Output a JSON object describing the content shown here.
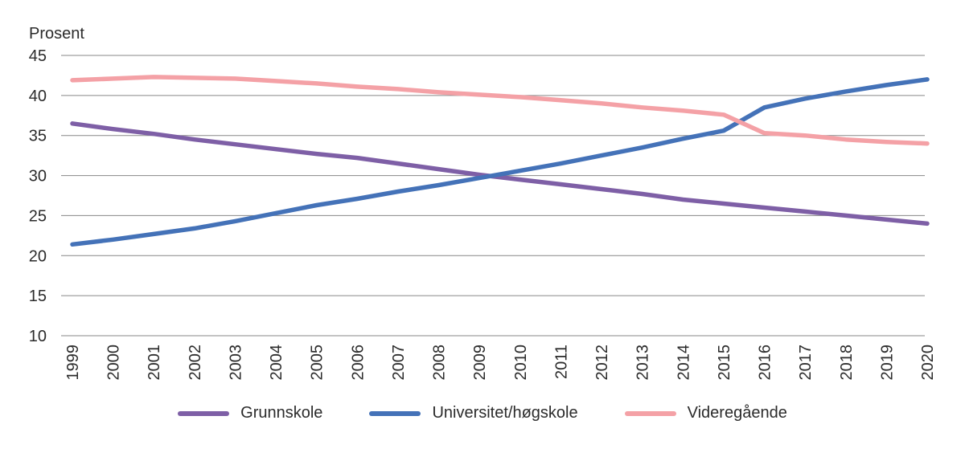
{
  "figure": {
    "y_axis_title": "Prosent",
    "text_color": "#2b2b2b",
    "grid_color": "#878787",
    "background": "#ffffff"
  },
  "chart_data": {
    "type": "line",
    "title": "",
    "xlabel": "",
    "ylabel": "Prosent",
    "ylim": [
      10,
      45
    ],
    "y_ticks": [
      45,
      40,
      35,
      30,
      25,
      20,
      15,
      10
    ],
    "grid": true,
    "legend_position": "bottom",
    "categories": [
      "1999",
      "2000",
      "2001",
      "2002",
      "2003",
      "2004",
      "2005",
      "2006",
      "2007",
      "2008",
      "2009",
      "2010",
      "2011",
      "2012",
      "2013",
      "2014",
      "2015",
      "2016",
      "2017",
      "2018",
      "2019",
      "2020"
    ],
    "series": [
      {
        "name": "Grunnskole",
        "color": "#7E5FA6",
        "values": [
          36.5,
          35.8,
          35.2,
          34.5,
          33.9,
          33.3,
          32.7,
          32.2,
          31.5,
          30.8,
          30.1,
          29.5,
          28.9,
          28.3,
          27.7,
          27.0,
          26.5,
          26.0,
          25.5,
          25.0,
          24.5,
          24.0
        ]
      },
      {
        "name": "Universitet/høgskole",
        "color": "#4472B8",
        "values": [
          21.4,
          22.0,
          22.7,
          23.4,
          24.3,
          25.3,
          26.3,
          27.1,
          28.0,
          28.8,
          29.7,
          30.6,
          31.5,
          32.5,
          33.5,
          34.6,
          35.6,
          38.5,
          39.6,
          40.5,
          41.3,
          42.0
        ]
      },
      {
        "name": "Videregående",
        "color": "#F4A1A6",
        "values": [
          41.9,
          42.1,
          42.3,
          42.2,
          42.1,
          41.8,
          41.5,
          41.1,
          40.8,
          40.4,
          40.1,
          39.8,
          39.4,
          39.0,
          38.5,
          38.1,
          37.6,
          35.3,
          35.0,
          34.5,
          34.2,
          34.0
        ]
      }
    ]
  }
}
